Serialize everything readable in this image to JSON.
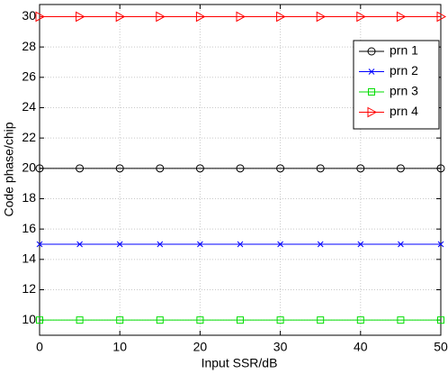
{
  "chart_data": {
    "type": "line",
    "x_label": "Input SSR/dB",
    "y_label": "Code phase/chip",
    "x": [
      0,
      5,
      10,
      15,
      20,
      25,
      30,
      35,
      40,
      45,
      50
    ],
    "series": [
      {
        "name": "prn 1",
        "color": "#000000",
        "marker": "circle",
        "values": [
          20,
          20,
          20,
          20,
          20,
          20,
          20,
          20,
          20,
          20,
          20
        ]
      },
      {
        "name": "prn 2",
        "color": "#0000ff",
        "marker": "x",
        "values": [
          15,
          15,
          15,
          15,
          15,
          15,
          15,
          15,
          15,
          15,
          15
        ]
      },
      {
        "name": "prn 3",
        "color": "#00dd00",
        "marker": "square",
        "values": [
          10,
          10,
          10,
          10,
          10,
          10,
          10,
          10,
          10,
          10,
          10
        ]
      },
      {
        "name": "prn 4",
        "color": "#ff0000",
        "marker": "triangle-right",
        "values": [
          30,
          30,
          30,
          30,
          30,
          30,
          30,
          30,
          30,
          30,
          30
        ]
      }
    ],
    "xlim": [
      0,
      50
    ],
    "xticks": [
      0,
      10,
      20,
      30,
      40,
      50
    ],
    "ylim": [
      9,
      30.8
    ],
    "yticks": [
      10,
      12,
      14,
      16,
      18,
      20,
      22,
      24,
      26,
      28,
      30
    ],
    "grid": true,
    "legend": "northeast"
  }
}
